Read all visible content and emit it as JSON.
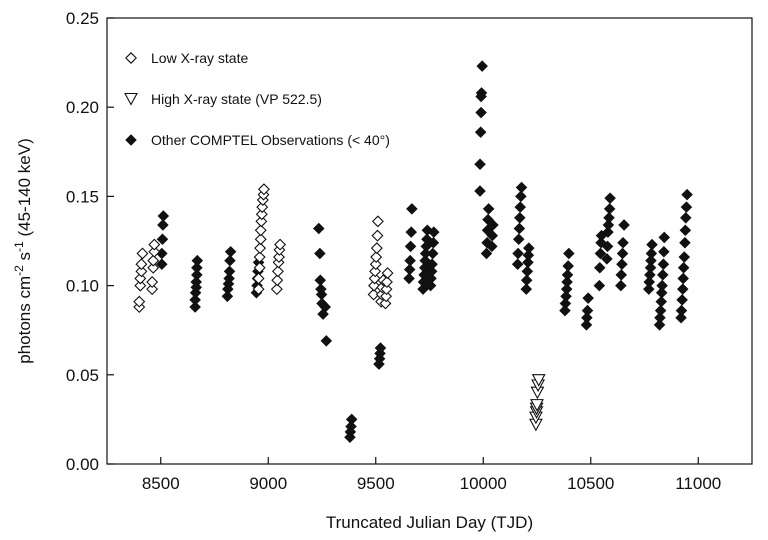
{
  "chart_data": {
    "type": "scatter",
    "xlabel": "Truncated Julian Day (TJD)",
    "ylabel_parts": [
      "photons cm",
      "-2",
      " s",
      "-1",
      " (45-140 keV)"
    ],
    "xlim": [
      8250,
      11250
    ],
    "ylim": [
      0.0,
      0.25
    ],
    "x_ticks": [
      8500,
      9000,
      9500,
      10000,
      10500,
      11000
    ],
    "y_ticks": [
      0.0,
      0.05,
      0.1,
      0.15,
      0.2,
      0.25
    ],
    "y_tick_labels": [
      "0.00",
      "0.05",
      "0.10",
      "0.15",
      "0.20",
      "0.25"
    ],
    "legend_position": "top-left",
    "series": [
      {
        "name": "Low X-ray state",
        "marker": "diamond-open",
        "points": [
          [
            8400,
            0.088
          ],
          [
            8400,
            0.091
          ],
          [
            8405,
            0.1
          ],
          [
            8405,
            0.104
          ],
          [
            8410,
            0.108
          ],
          [
            8410,
            0.112
          ],
          [
            8415,
            0.118
          ],
          [
            8460,
            0.098
          ],
          [
            8460,
            0.102
          ],
          [
            8465,
            0.11
          ],
          [
            8465,
            0.114
          ],
          [
            8470,
            0.119
          ],
          [
            8470,
            0.123
          ],
          [
            8955,
            0.098
          ],
          [
            8955,
            0.104
          ],
          [
            8960,
            0.11
          ],
          [
            8960,
            0.116
          ],
          [
            8962,
            0.121
          ],
          [
            8965,
            0.126
          ],
          [
            8965,
            0.131
          ],
          [
            8968,
            0.136
          ],
          [
            8970,
            0.14
          ],
          [
            8972,
            0.144
          ],
          [
            8975,
            0.148
          ],
          [
            8978,
            0.151
          ],
          [
            8980,
            0.154
          ],
          [
            9040,
            0.098
          ],
          [
            9042,
            0.103
          ],
          [
            9045,
            0.108
          ],
          [
            9048,
            0.113
          ],
          [
            9050,
            0.116
          ],
          [
            9052,
            0.12
          ],
          [
            9055,
            0.123
          ],
          [
            9490,
            0.095
          ],
          [
            9492,
            0.1
          ],
          [
            9495,
            0.104
          ],
          [
            9497,
            0.108
          ],
          [
            9500,
            0.112
          ],
          [
            9502,
            0.116
          ],
          [
            9505,
            0.121
          ],
          [
            9508,
            0.128
          ],
          [
            9510,
            0.136
          ],
          [
            9525,
            0.091
          ],
          [
            9528,
            0.095
          ],
          [
            9530,
            0.099
          ],
          [
            9535,
            0.103
          ],
          [
            9545,
            0.09
          ],
          [
            9548,
            0.094
          ],
          [
            9550,
            0.098
          ],
          [
            9552,
            0.102
          ],
          [
            9555,
            0.107
          ]
        ]
      },
      {
        "name": "High X-ray state (VP 522.5)",
        "marker": "triangle-down-open",
        "points": [
          [
            10245,
            0.022
          ],
          [
            10245,
            0.026
          ],
          [
            10248,
            0.029
          ],
          [
            10248,
            0.031
          ],
          [
            10250,
            0.033
          ],
          [
            10252,
            0.04
          ],
          [
            10255,
            0.044
          ],
          [
            10258,
            0.047
          ]
        ]
      },
      {
        "name": "Other COMPTEL Observations (< 40°)",
        "marker": "diamond-filled",
        "points": [
          [
            8505,
            0.112
          ],
          [
            8505,
            0.118
          ],
          [
            8508,
            0.126
          ],
          [
            8510,
            0.134
          ],
          [
            8512,
            0.139
          ],
          [
            8660,
            0.088
          ],
          [
            8660,
            0.092
          ],
          [
            8662,
            0.096
          ],
          [
            8665,
            0.099
          ],
          [
            8665,
            0.102
          ],
          [
            8668,
            0.106
          ],
          [
            8668,
            0.11
          ],
          [
            8670,
            0.114
          ],
          [
            8810,
            0.094
          ],
          [
            8812,
            0.098
          ],
          [
            8815,
            0.101
          ],
          [
            8818,
            0.104
          ],
          [
            8820,
            0.108
          ],
          [
            8822,
            0.114
          ],
          [
            8825,
            0.119
          ],
          [
            8945,
            0.096
          ],
          [
            8948,
            0.1
          ],
          [
            8950,
            0.104
          ],
          [
            8952,
            0.108
          ],
          [
            8955,
            0.113
          ],
          [
            9235,
            0.132
          ],
          [
            9240,
            0.118
          ],
          [
            9242,
            0.103
          ],
          [
            9245,
            0.098
          ],
          [
            9248,
            0.095
          ],
          [
            9250,
            0.09
          ],
          [
            9255,
            0.084
          ],
          [
            9265,
            0.088
          ],
          [
            9270,
            0.069
          ],
          [
            9380,
            0.015
          ],
          [
            9382,
            0.018
          ],
          [
            9385,
            0.021
          ],
          [
            9388,
            0.025
          ],
          [
            9515,
            0.056
          ],
          [
            9518,
            0.059
          ],
          [
            9520,
            0.062
          ],
          [
            9522,
            0.065
          ],
          [
            9655,
            0.104
          ],
          [
            9658,
            0.109
          ],
          [
            9660,
            0.114
          ],
          [
            9662,
            0.122
          ],
          [
            9665,
            0.13
          ],
          [
            9668,
            0.143
          ],
          [
            9720,
            0.098
          ],
          [
            9722,
            0.102
          ],
          [
            9725,
            0.106
          ],
          [
            9728,
            0.11
          ],
          [
            9730,
            0.114
          ],
          [
            9732,
            0.118
          ],
          [
            9735,
            0.122
          ],
          [
            9738,
            0.126
          ],
          [
            9740,
            0.131
          ],
          [
            9755,
            0.1
          ],
          [
            9757,
            0.104
          ],
          [
            9760,
            0.108
          ],
          [
            9762,
            0.112
          ],
          [
            9765,
            0.118
          ],
          [
            9768,
            0.124
          ],
          [
            9770,
            0.13
          ],
          [
            9985,
            0.153
          ],
          [
            9985,
            0.168
          ],
          [
            9988,
            0.186
          ],
          [
            9990,
            0.197
          ],
          [
            9990,
            0.206
          ],
          [
            9992,
            0.208
          ],
          [
            9995,
            0.223
          ],
          [
            10015,
            0.118
          ],
          [
            10018,
            0.124
          ],
          [
            10020,
            0.131
          ],
          [
            10022,
            0.137
          ],
          [
            10025,
            0.143
          ],
          [
            10040,
            0.122
          ],
          [
            10042,
            0.128
          ],
          [
            10045,
            0.134
          ],
          [
            10160,
            0.112
          ],
          [
            10162,
            0.118
          ],
          [
            10165,
            0.126
          ],
          [
            10168,
            0.132
          ],
          [
            10170,
            0.138
          ],
          [
            10172,
            0.144
          ],
          [
            10175,
            0.15
          ],
          [
            10178,
            0.155
          ],
          [
            10200,
            0.098
          ],
          [
            10202,
            0.103
          ],
          [
            10205,
            0.108
          ],
          [
            10208,
            0.113
          ],
          [
            10210,
            0.117
          ],
          [
            10212,
            0.121
          ],
          [
            10380,
            0.086
          ],
          [
            10382,
            0.09
          ],
          [
            10385,
            0.094
          ],
          [
            10388,
            0.098
          ],
          [
            10390,
            0.102
          ],
          [
            10392,
            0.106
          ],
          [
            10395,
            0.111
          ],
          [
            10398,
            0.118
          ],
          [
            10480,
            0.078
          ],
          [
            10482,
            0.082
          ],
          [
            10485,
            0.086
          ],
          [
            10488,
            0.093
          ],
          [
            10540,
            0.1
          ],
          [
            10542,
            0.11
          ],
          [
            10545,
            0.118
          ],
          [
            10548,
            0.124
          ],
          [
            10550,
            0.128
          ],
          [
            10575,
            0.115
          ],
          [
            10578,
            0.122
          ],
          [
            10580,
            0.13
          ],
          [
            10582,
            0.134
          ],
          [
            10585,
            0.138
          ],
          [
            10588,
            0.143
          ],
          [
            10590,
            0.149
          ],
          [
            10640,
            0.1
          ],
          [
            10642,
            0.106
          ],
          [
            10645,
            0.112
          ],
          [
            10648,
            0.118
          ],
          [
            10650,
            0.124
          ],
          [
            10655,
            0.134
          ],
          [
            10770,
            0.098
          ],
          [
            10772,
            0.102
          ],
          [
            10775,
            0.106
          ],
          [
            10778,
            0.11
          ],
          [
            10780,
            0.114
          ],
          [
            10782,
            0.118
          ],
          [
            10785,
            0.123
          ],
          [
            10820,
            0.078
          ],
          [
            10822,
            0.082
          ],
          [
            10825,
            0.086
          ],
          [
            10828,
            0.091
          ],
          [
            10830,
            0.096
          ],
          [
            10832,
            0.1
          ],
          [
            10835,
            0.106
          ],
          [
            10838,
            0.112
          ],
          [
            10840,
            0.119
          ],
          [
            10842,
            0.127
          ],
          [
            10920,
            0.082
          ],
          [
            10922,
            0.086
          ],
          [
            10925,
            0.092
          ],
          [
            10928,
            0.098
          ],
          [
            10930,
            0.104
          ],
          [
            10932,
            0.11
          ],
          [
            10935,
            0.116
          ],
          [
            10938,
            0.124
          ],
          [
            10940,
            0.131
          ],
          [
            10942,
            0.138
          ],
          [
            10945,
            0.144
          ],
          [
            10948,
            0.151
          ]
        ]
      }
    ]
  }
}
